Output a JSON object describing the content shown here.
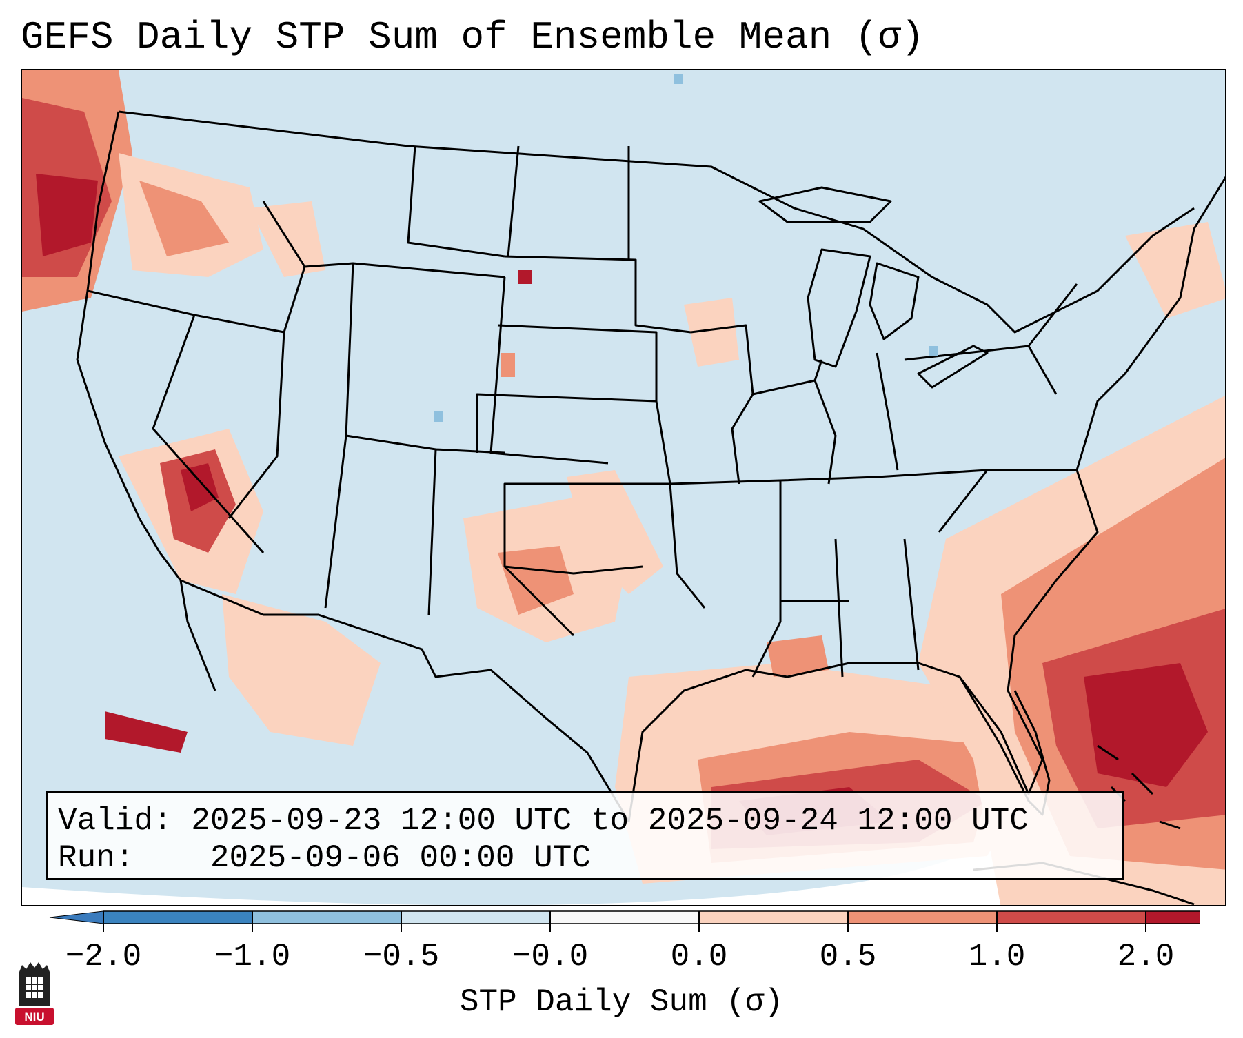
{
  "title": "GEFS Daily STP Sum of Ensemble Mean (σ)",
  "info": {
    "valid_label": "Valid:",
    "valid_value": "2025-09-23 12:00 UTC to 2025-09-24 12:00 UTC",
    "run_label": "Run:",
    "run_value": "2025-09-06 00:00 UTC"
  },
  "colorbar": {
    "label": "STP Daily Sum (σ)",
    "ticks": [
      "−2.0",
      "−1.0",
      "−0.5",
      "−0.0",
      "0.0",
      "0.5",
      "1.0",
      "2.0"
    ],
    "colors": [
      "#3a83bf",
      "#8fc0de",
      "#d1e5f0",
      "#f8f8f8",
      "#fbd3bf",
      "#ee9276",
      "#cf4b49",
      "#b2182b"
    ],
    "under_color": "#3a7bbd",
    "over_color": "#b2182b"
  },
  "map": {
    "background_color": "#d1e5f0",
    "outline_color": "#000000",
    "shading_levels": [
      {
        "label": "0.0 to 0.5",
        "color": "#fbd3bf"
      },
      {
        "label": "0.5 to 1.0",
        "color": "#ee9276"
      },
      {
        "label": "1.0 to 2.0",
        "color": "#cf4b49"
      },
      {
        "label": "> 2.0",
        "color": "#b2182b"
      }
    ]
  },
  "logo": {
    "icon": "niu-logo-icon",
    "text": "NIU",
    "color": "#c8102e"
  }
}
